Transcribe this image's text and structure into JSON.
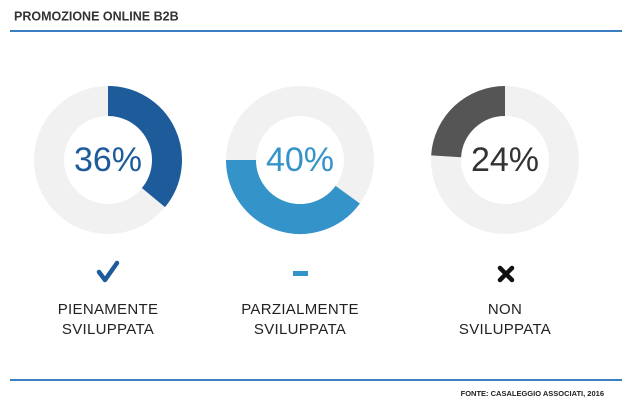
{
  "chart_data": {
    "type": "donut",
    "title": "PROMOZIONE ONLINE B2B",
    "categories": [
      "PIENAMENTE SVILUPPATA",
      "PARZIALMENTE SVILUPPATA",
      "NON SVILUPPATA"
    ],
    "values": [
      36,
      40,
      24
    ],
    "value_labels": [
      "36%",
      "40%",
      "24%"
    ],
    "colors": [
      "#1d5b9b",
      "#3493c9",
      "#555555"
    ],
    "source": "FONTE: CASALEGGIO ASSOCIATI, 2016"
  }
}
